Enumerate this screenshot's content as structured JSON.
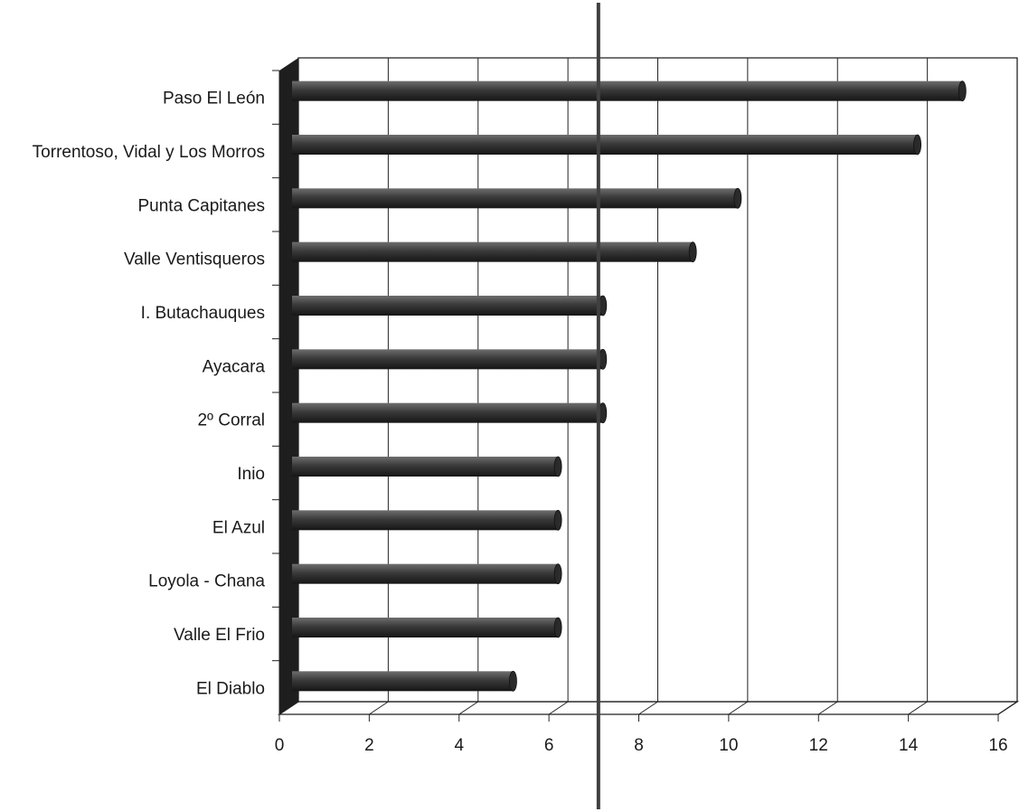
{
  "chart_data": {
    "type": "bar",
    "orientation": "horizontal",
    "style": "3d",
    "categories": [
      "Paso El León",
      "Torrentoso, Vidal y Los Morros",
      "Punta Capitanes",
      "Valle Ventisqueros",
      "I. Butachauques",
      "Ayacara",
      "2º Corral",
      "Inio",
      "El Azul",
      "Loyola - Chana",
      "Valle El Frio",
      "El Diablo"
    ],
    "values": [
      15,
      14,
      10,
      9,
      7,
      7,
      7,
      6,
      6,
      6,
      6,
      5
    ],
    "xlim": [
      0,
      16
    ],
    "x_ticks": [
      "0",
      "2",
      "4",
      "6",
      "8",
      "10",
      "12",
      "14",
      "16"
    ],
    "grid": true,
    "reference_line": 6.9,
    "legend": "none",
    "title": "",
    "xlabel": "",
    "ylabel": "",
    "colors": {
      "bar": "#3a3a3a",
      "bar_highlight": "#777777",
      "bar_shadow": "#111111",
      "reference_line": "#404040",
      "wall": "#1e1e1e"
    }
  }
}
